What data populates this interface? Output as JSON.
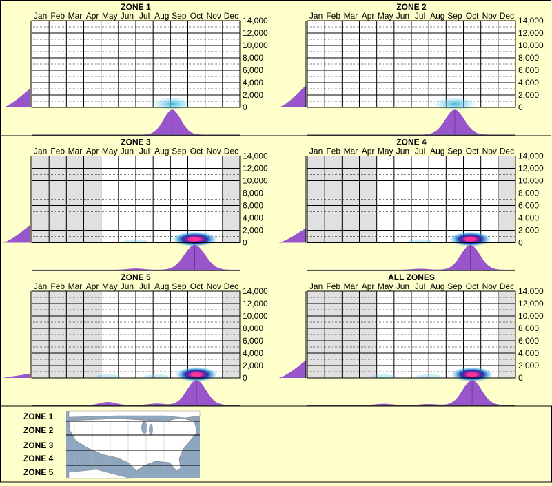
{
  "months": [
    "Jan",
    "Feb",
    "Mar",
    "Apr",
    "May",
    "Jun",
    "Jul",
    "Aug",
    "Sep",
    "Oct",
    "Nov",
    "Dec"
  ],
  "y_ticks": [
    "14,000",
    "12,000",
    "10,000",
    "8,000",
    "6,000",
    "4,000",
    "2,000",
    "0"
  ],
  "colors": {
    "background": "#ffffcc",
    "profile": "#9955cc",
    "hot": "#ff3399",
    "cold": "#66ccee",
    "blank": "#e0e0e0"
  },
  "chart_data": [
    {
      "type": "heatmap",
      "title": "ZONE 1",
      "ylim": [
        0,
        14000
      ],
      "peak_month": 7.6,
      "spread": 0.5,
      "intensity": 0.45,
      "blank_months": [],
      "minor_bumps": [],
      "left_profile_max": 0.26
    },
    {
      "type": "heatmap",
      "title": "ZONE 2",
      "ylim": [
        0,
        14000
      ],
      "peak_month": 8.0,
      "spread": 0.55,
      "intensity": 0.45,
      "blank_months": [],
      "minor_bumps": [],
      "left_profile_max": 0.3
    },
    {
      "type": "heatmap",
      "title": "ZONE 3",
      "ylim": [
        0,
        14000
      ],
      "peak_month": 8.9,
      "spread": 0.6,
      "intensity": 1.0,
      "blank_months": [
        0,
        1,
        2,
        3,
        11
      ],
      "minor_bumps": [
        [
          5.5,
          0.05
        ]
      ],
      "left_profile_max": 0.24
    },
    {
      "type": "heatmap",
      "title": "ZONE 4",
      "ylim": [
        0,
        14000
      ],
      "peak_month": 8.9,
      "spread": 0.55,
      "intensity": 0.95,
      "blank_months": [
        0,
        1,
        2,
        3,
        11
      ],
      "minor_bumps": [
        [
          6.0,
          0.04
        ]
      ],
      "left_profile_max": 0.2
    },
    {
      "type": "heatmap",
      "title": "ZONE 5",
      "ylim": [
        0,
        14000
      ],
      "peak_month": 9.0,
      "spread": 0.55,
      "intensity": 0.95,
      "blank_months": [
        0,
        1,
        2,
        3,
        11
      ],
      "minor_bumps": [
        [
          3.9,
          0.12
        ],
        [
          6.7,
          0.06
        ]
      ],
      "left_profile_max": 0.06
    },
    {
      "type": "heatmap",
      "title": "ALL ZONES",
      "ylim": [
        0,
        14000
      ],
      "peak_month": 9.0,
      "spread": 0.55,
      "intensity": 1.0,
      "blank_months": [
        0,
        1,
        2,
        3,
        11
      ],
      "minor_bumps": [
        [
          3.9,
          0.05
        ],
        [
          6.5,
          0.04
        ]
      ],
      "left_profile_max": 0.24
    }
  ],
  "legend": {
    "zones": [
      "ZONE 1",
      "ZONE 2",
      "ZONE 3",
      "ZONE 4",
      "ZONE 5"
    ],
    "map_icon": "us-map-icon"
  }
}
